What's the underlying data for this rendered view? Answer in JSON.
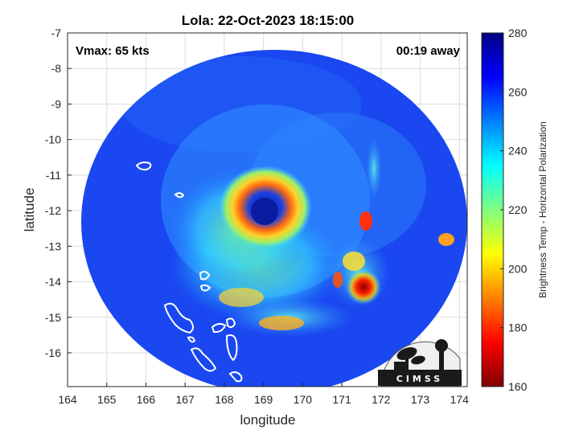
{
  "chart_data": {
    "type": "heatmap",
    "title": "Lola: 22-Oct-2023 18:15:00",
    "xlabel": "longitude",
    "ylabel": "latitude",
    "xlim": [
      164,
      174.2
    ],
    "ylim": [
      -16.95,
      -7
    ],
    "x_ticks": [
      "164",
      "165",
      "166",
      "167",
      "168",
      "169",
      "170",
      "171",
      "172",
      "173",
      "174"
    ],
    "y_ticks": [
      "-7",
      "-8",
      "-9",
      "-10",
      "-11",
      "-12",
      "-13",
      "-14",
      "-15",
      "-16"
    ],
    "grid": true,
    "annotations": {
      "left": "Vmax: 65 kts",
      "right": "00:19 away"
    },
    "colorbar": {
      "label": "Brightness Temp - Horizontal Polarization",
      "min": 160,
      "max": 280,
      "ticks": [
        "280",
        "260",
        "240",
        "220",
        "200",
        "180",
        "160"
      ],
      "colormap": "jet"
    },
    "storm_center": {
      "lon": 169.05,
      "lat": -12.05
    },
    "swath_center": {
      "lon": 169.0,
      "lat": -11.6
    }
  },
  "logo": {
    "text": "CIMSS"
  }
}
